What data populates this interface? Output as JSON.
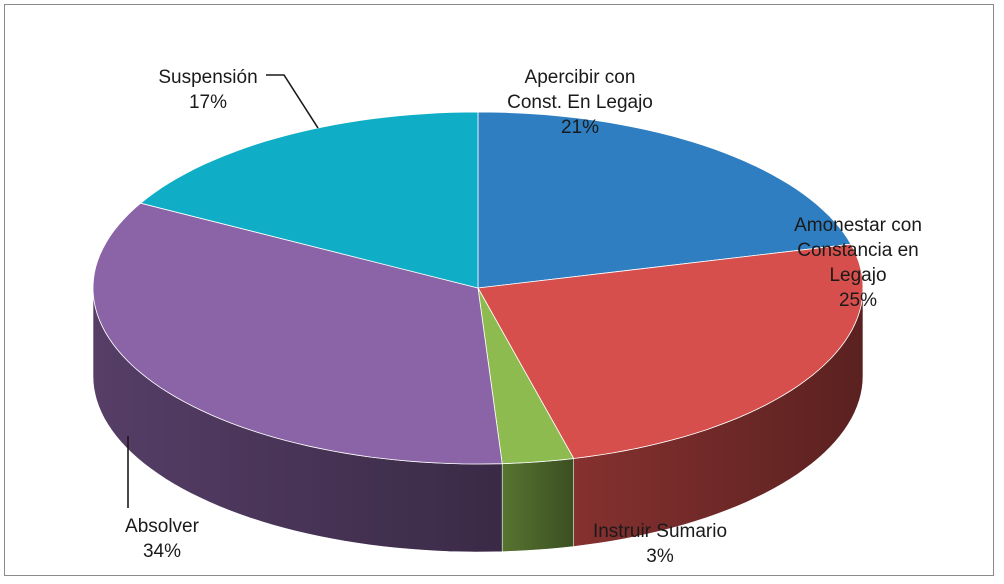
{
  "chart_data": {
    "type": "pie",
    "title": "",
    "three_d": true,
    "legend": "none",
    "slices": [
      {
        "label_lines": [
          "Apercibir con",
          "Const. En Legajo"
        ],
        "value": 21,
        "value_label": "21%",
        "color": "#2e7ec1"
      },
      {
        "label_lines": [
          "Amonestar con",
          "Constancia en",
          "Legajo"
        ],
        "value": 25,
        "value_label": "25%",
        "color": "#d64f4c"
      },
      {
        "label_lines": [
          "Instruir Sumario"
        ],
        "value": 3,
        "value_label": "3%",
        "color": "#8dbb4f"
      },
      {
        "label_lines": [
          "Absolver"
        ],
        "value": 34,
        "value_label": "34%",
        "color": "#8a64a6"
      },
      {
        "label_lines": [
          "Suspensión"
        ],
        "value": 17,
        "value_label": "17%",
        "color": "#10aec6"
      }
    ]
  }
}
